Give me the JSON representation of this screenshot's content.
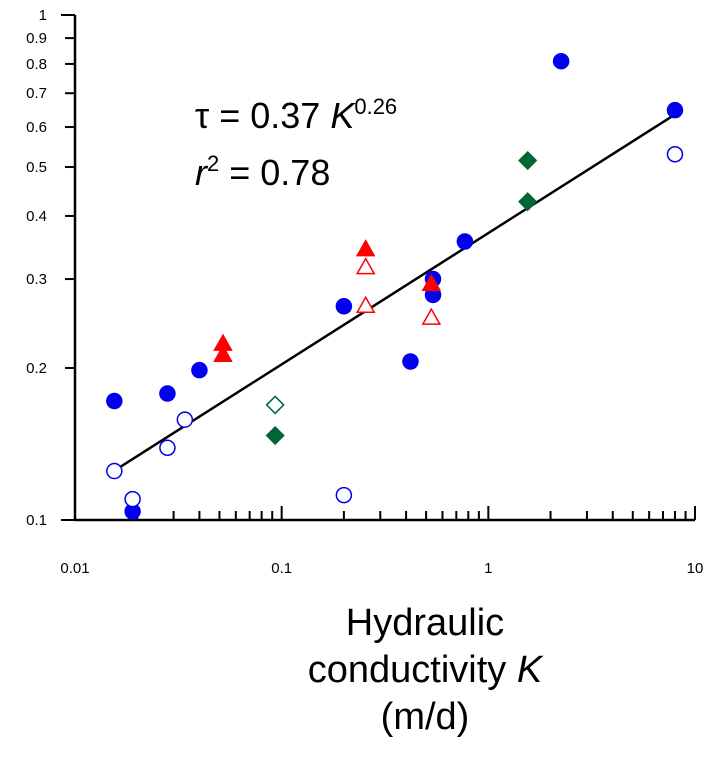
{
  "chart_data": {
    "type": "scatter",
    "title": "",
    "xlabel": "Hydraulic conductivity K (m/d)",
    "ylabel": "",
    "x_scale": "log",
    "y_scale": "log",
    "xlim": [
      0.01,
      10
    ],
    "ylim": [
      0.1,
      1
    ],
    "x_tick_labels": [
      "0.01",
      "0.1",
      "1",
      "10"
    ],
    "y_tick_labels": [
      "0.1",
      "0.2",
      "0.3",
      "0.4",
      "0.5",
      "0.6",
      "0.7",
      "0.8",
      "0.9",
      "1"
    ],
    "grid": false,
    "legend": "none",
    "annotations": {
      "equation": {
        "lhs": "τ = 0.37 ",
        "var": "K",
        "exponent": "0.26"
      },
      "r2": {
        "var": "r",
        "exponent": "2",
        "rhs": " = 0.78"
      }
    },
    "xlabel_lines": [
      "Hydraulic",
      "conductivity ",
      "(m/d)"
    ],
    "xlabel_var": "K",
    "fit_line": {
      "coefficient": 0.37,
      "exponent": 0.26,
      "x_range": [
        0.0155,
        7.9
      ]
    },
    "series": [
      {
        "marker": "circle",
        "filled": true,
        "color": "#0000ee",
        "points": [
          [
            0.0155,
            0.172
          ],
          [
            0.019,
            0.104
          ],
          [
            0.028,
            0.178
          ],
          [
            0.04,
            0.198
          ],
          [
            0.2,
            0.265
          ],
          [
            0.42,
            0.206
          ],
          [
            0.54,
            0.3
          ],
          [
            0.54,
            0.279
          ],
          [
            0.77,
            0.356
          ],
          [
            2.25,
            0.81
          ],
          [
            8.0,
            0.648
          ]
        ]
      },
      {
        "marker": "circle",
        "filled": false,
        "color": "#0000ee",
        "points": [
          [
            0.0155,
            0.125
          ],
          [
            0.019,
            0.11
          ],
          [
            0.028,
            0.139
          ],
          [
            0.034,
            0.158
          ],
          [
            0.2,
            0.112
          ],
          [
            8.0,
            0.53
          ]
        ]
      },
      {
        "marker": "triangle",
        "filled": true,
        "color": "#ff0000",
        "points": [
          [
            0.052,
            0.223
          ],
          [
            0.052,
            0.212
          ],
          [
            0.255,
            0.343
          ],
          [
            0.53,
            0.293
          ]
        ]
      },
      {
        "marker": "triangle",
        "filled": false,
        "color": "#ff0000",
        "points": [
          [
            0.255,
            0.316
          ],
          [
            0.255,
            0.265
          ],
          [
            0.53,
            0.251
          ]
        ]
      },
      {
        "marker": "diamond",
        "filled": true,
        "color": "#006633",
        "points": [
          [
            0.093,
            0.147
          ],
          [
            1.55,
            0.515
          ],
          [
            1.55,
            0.427
          ]
        ]
      },
      {
        "marker": "diamond",
        "filled": false,
        "color": "#006633",
        "points": [
          [
            0.093,
            0.169
          ]
        ]
      }
    ]
  }
}
